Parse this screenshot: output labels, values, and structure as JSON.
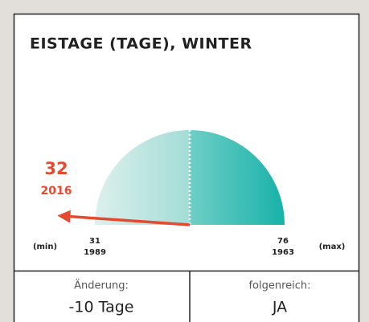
{
  "title": "EISTAGE (TAGE), WINTER",
  "gauge": {
    "value": 32,
    "value_year": 2016,
    "min": 31,
    "min_year": 1989,
    "max": 76,
    "max_year": 1963,
    "min_label": "(min)",
    "max_label": "(max)"
  },
  "footer": {
    "left_label": "Änderung:",
    "left_value": "-10 Tage",
    "right_label": "folgenreich:",
    "right_value": "JA"
  }
}
